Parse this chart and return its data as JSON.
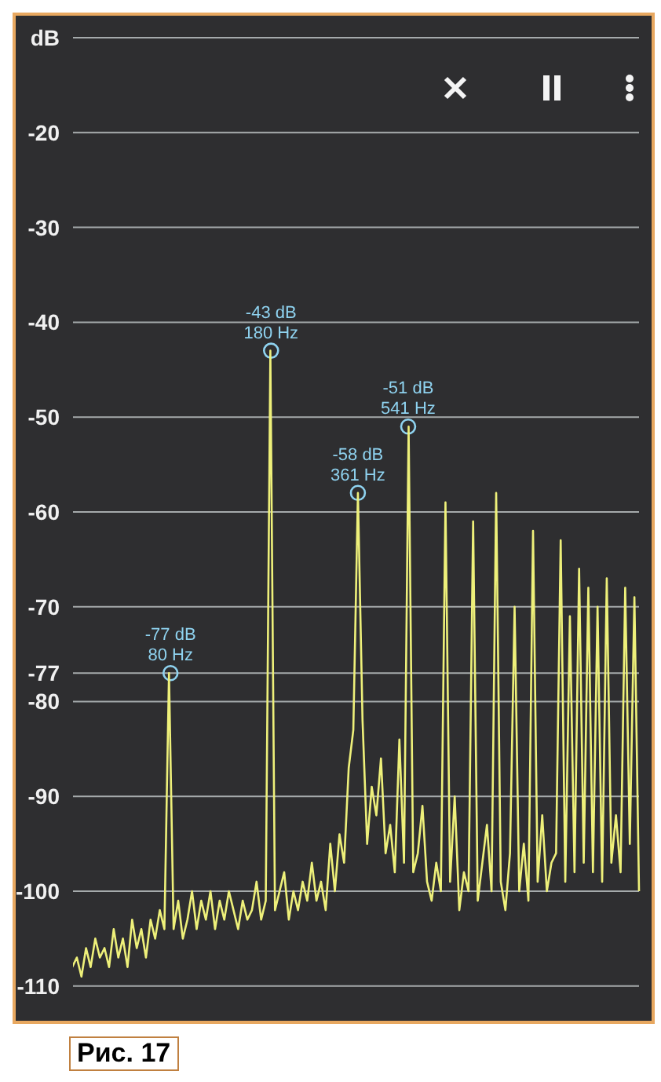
{
  "chart_data": {
    "type": "line",
    "categories": [
      null,
      null,
      null,
      null,
      null,
      null,
      null,
      null,
      null,
      null,
      null,
      null,
      null,
      null,
      null,
      null,
      null,
      null,
      null,
      null,
      null,
      null,
      null,
      null,
      null,
      null,
      null,
      null,
      null,
      null,
      null,
      null,
      null,
      null,
      null,
      null,
      null,
      null,
      null,
      null,
      null,
      null,
      null,
      null,
      null,
      null,
      null,
      null,
      null,
      null,
      null,
      null,
      null,
      null,
      null,
      null,
      null,
      null,
      null,
      null,
      null,
      null,
      null,
      null,
      null,
      null,
      null,
      null,
      null,
      null,
      null,
      null,
      null,
      null,
      null,
      null,
      null,
      null,
      null,
      null,
      null,
      null,
      null,
      null,
      null,
      null,
      null,
      null,
      null,
      null,
      null,
      null,
      null,
      null,
      null,
      null,
      null,
      null,
      null,
      null,
      null,
      null,
      null,
      null,
      null,
      null,
      null,
      null,
      null,
      null,
      null,
      null,
      null,
      null,
      null,
      null,
      null,
      null,
      null,
      null,
      null,
      null,
      null,
      null
    ],
    "series": [
      {
        "color": "#eef07a",
        "values": [
          -108,
          -107,
          -109,
          -106,
          -108,
          -105,
          -107,
          -106,
          -108,
          -104,
          -107,
          -105,
          -108,
          -103,
          -106,
          -104,
          -107,
          -103,
          -105,
          -102,
          -104,
          -77,
          -104,
          -101,
          -105,
          -103,
          -100,
          -104,
          -101,
          -103,
          -100,
          -104,
          -101,
          -103,
          -100,
          -102,
          -104,
          -101,
          -103,
          -102,
          -99,
          -103,
          -101,
          -43,
          -102,
          -100,
          -98,
          -103,
          -100,
          -102,
          -99,
          -101,
          -97,
          -101,
          -99,
          -102,
          -95,
          -100,
          -94,
          -97,
          -87,
          -83,
          -58,
          -82,
          -95,
          -89,
          -92,
          -86,
          -96,
          -93,
          -98,
          -84,
          -97,
          -51,
          -98,
          -96,
          -91,
          -99,
          -101,
          -97,
          -100,
          -59,
          -99,
          -90,
          -102,
          -98,
          -100,
          -61,
          -101,
          -97,
          -93,
          -100,
          -58,
          -99,
          -102,
          -96,
          -70,
          -100,
          -95,
          -101,
          -62,
          -99,
          -92,
          -100,
          -97,
          -96,
          -63,
          -99,
          -71,
          -98,
          -66,
          -97,
          -68,
          -98,
          -70,
          -99,
          -67,
          -97,
          -92,
          -98,
          -68,
          -95,
          -69,
          -100
        ]
      }
    ],
    "ylim": [
      -113,
      -9
    ],
    "yticks": [
      {
        "value": -10,
        "label": "dB"
      },
      -20,
      -30,
      -40,
      -50,
      -60,
      -70,
      -77,
      -80,
      -90,
      -100,
      -110
    ],
    "grid": "y",
    "marker": "none",
    "line_style": "solid",
    "annotations": [
      {
        "text": "-77 dB\n80 Hz",
        "y": -77
      },
      {
        "text": "-43 dB\n180 Hz",
        "y": -43
      },
      {
        "text": "-58 dB\n361 Hz",
        "y": -58
      },
      {
        "text": "-51 dB\n541 Hz",
        "y": -51
      },
      "Рис. 17"
    ]
  }
}
